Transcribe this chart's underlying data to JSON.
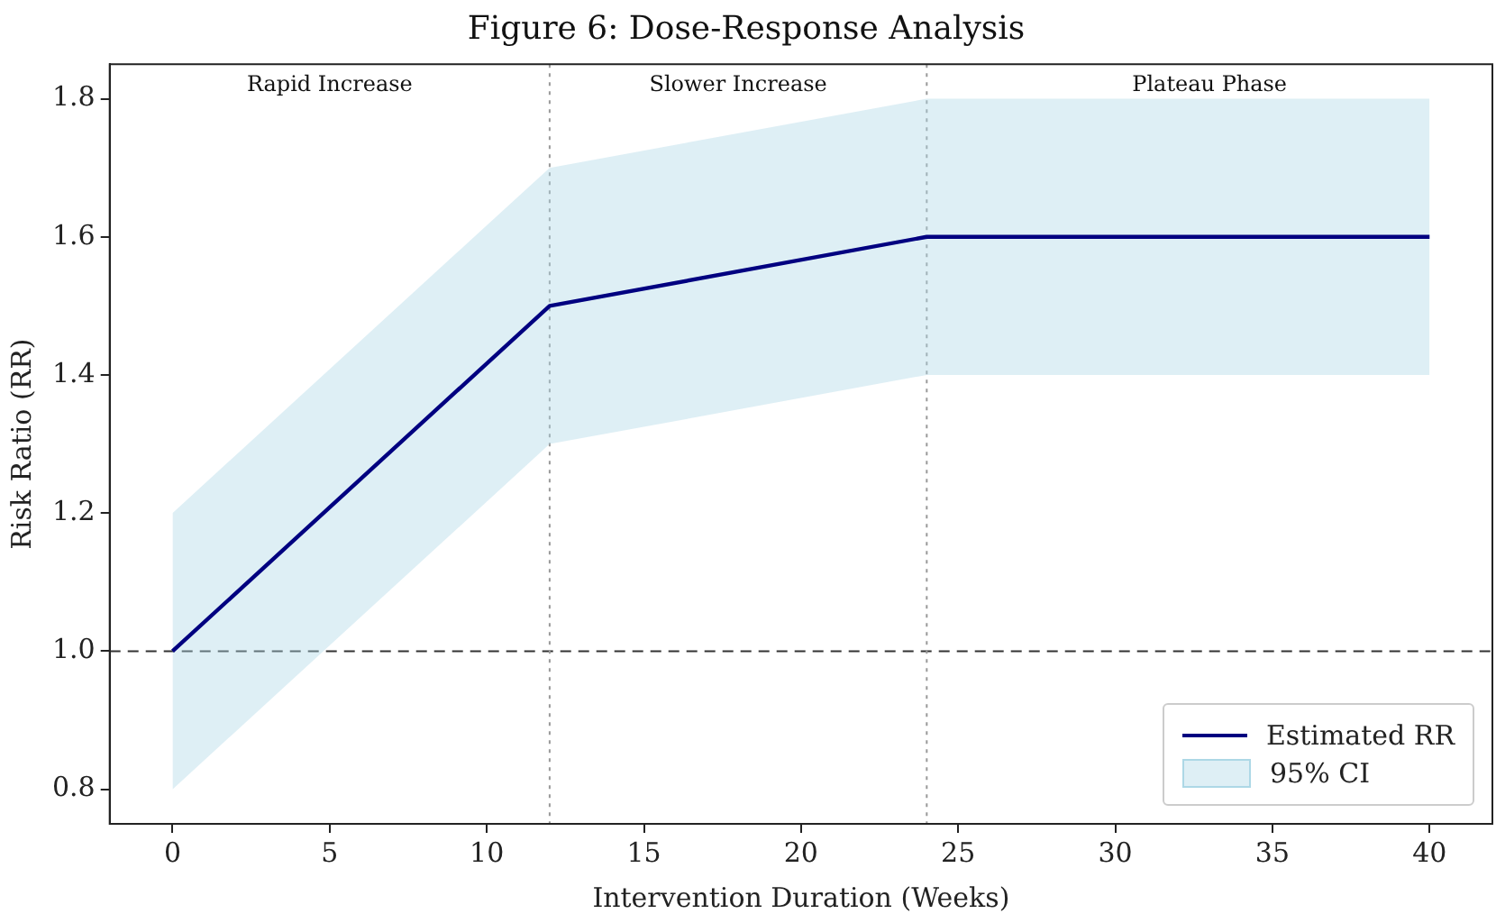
{
  "chart_data": {
    "type": "line",
    "title": "Figure 6: Dose-Response Analysis",
    "xlabel": "Intervention Duration (Weeks)",
    "ylabel": "Risk Ratio (RR)",
    "x": [
      0,
      12,
      24,
      40
    ],
    "series": [
      {
        "name": "Estimated RR",
        "color": "#000080",
        "values": [
          1.0,
          1.5,
          1.6,
          1.6
        ]
      },
      {
        "name": "95% CI",
        "type": "area",
        "color": "#add8e6",
        "values": [
          null,
          null,
          null,
          null
        ],
        "lower": [
          0.8,
          1.3,
          1.4,
          1.4
        ],
        "upper": [
          1.2,
          1.7,
          1.8,
          1.8
        ]
      }
    ],
    "xlim": [
      -2,
      42
    ],
    "xticks": [
      0,
      5,
      10,
      15,
      20,
      25,
      30,
      35,
      40
    ],
    "ylim": [
      0.75,
      1.85
    ],
    "yticks": [
      0.8,
      {
        "value": 1.0,
        "label": "1.0"
      },
      1.2,
      1.4,
      1.6,
      1.8
    ],
    "ref_lines": [
      {
        "axis": "y",
        "value": 1.0,
        "color": "#333333",
        "line_style": "dashed"
      },
      {
        "axis": "x",
        "value": 12,
        "color": "#999999",
        "line_style": "dotted"
      },
      {
        "axis": "x",
        "value": 24,
        "color": "#999999",
        "line_style": "dotted"
      }
    ],
    "annotations": [
      "Rapid Increase",
      "Slower Increase",
      "Plateau Phase"
    ],
    "grid": false,
    "legend": "bottom right",
    "marker": "none",
    "line_style": "solid"
  }
}
